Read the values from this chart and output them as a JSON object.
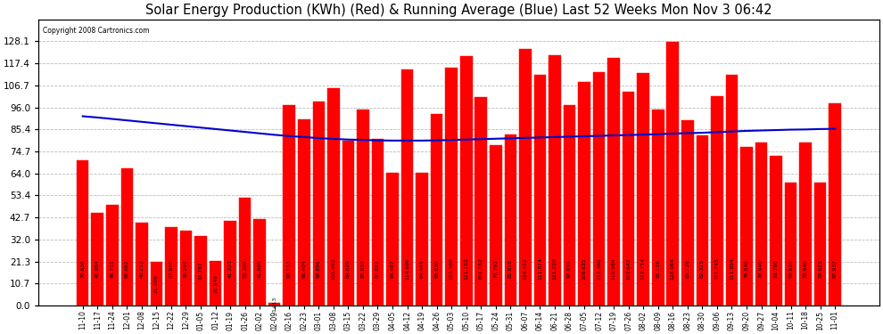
{
  "title": "Solar Energy Production (KWh) (Red) & Running Average (Blue) Last 52 Weeks Mon Nov 3 06:42",
  "copyright": "Copyright 2008 Cartronics.com",
  "bar_color": "#ff0000",
  "line_color": "#0000cc",
  "bg_color": "#ffffff",
  "grid_color": "#bbbbbb",
  "categories": [
    "11-10",
    "11-17",
    "11-24",
    "12-01",
    "12-08",
    "12-15",
    "12-22",
    "12-29",
    "01-05",
    "01-12",
    "01-19",
    "01-26",
    "02-02",
    "02-09",
    "02-16",
    "02-23",
    "03-01",
    "03-08",
    "03-15",
    "03-22",
    "03-29",
    "04-05",
    "04-12",
    "04-19",
    "04-26",
    "05-03",
    "05-10",
    "05-17",
    "05-24",
    "05-31",
    "06-07",
    "06-14",
    "06-21",
    "06-28",
    "07-05",
    "07-12",
    "07-19",
    "07-26",
    "08-02",
    "08-09",
    "08-16",
    "08-23",
    "08-30",
    "09-06",
    "09-13",
    "09-20",
    "09-27",
    "10-04",
    "10-11",
    "10-18",
    "10-25",
    "11-01"
  ],
  "values": [
    70.636,
    45.084,
    48.731,
    66.662,
    40.212,
    21.009,
    37.97,
    36.297,
    33.787,
    21.549,
    41.221,
    52.307,
    41.885,
    1.413,
    97.113,
    90.404,
    98.896,
    105.492,
    80.029,
    95.033,
    80.822,
    64.487,
    114.699,
    64.445,
    93.03,
    115.568,
    121.102,
    101.182,
    77.762,
    82.818,
    124.452,
    111.874,
    121.22,
    97.016,
    108.635,
    113.36,
    119.984,
    103.642,
    112.714,
    95.156,
    128.064,
    89.726,
    82.325,
    101.745,
    111.894,
    76.94,
    78.94,
    72.76,
    59.625,
    78.94,
    59.625,
    97.937
  ],
  "running_avg": [
    91.8,
    91.2,
    90.5,
    89.8,
    89.1,
    88.4,
    87.7,
    87.0,
    86.3,
    85.6,
    84.9,
    84.2,
    83.5,
    82.8,
    82.2,
    81.7,
    81.2,
    80.8,
    80.5,
    80.3,
    80.1,
    80.0,
    80.0,
    80.0,
    80.1,
    80.3,
    80.5,
    80.7,
    80.9,
    81.1,
    81.3,
    81.5,
    81.7,
    81.9,
    82.1,
    82.3,
    82.5,
    82.7,
    82.9,
    83.1,
    83.4,
    83.6,
    83.8,
    84.1,
    84.4,
    84.7,
    84.9,
    85.1,
    85.3,
    85.4,
    85.6,
    85.7
  ],
  "ylim": [
    0.0,
    138.8
  ],
  "yticks": [
    0.0,
    10.7,
    21.3,
    32.0,
    42.7,
    53.4,
    64.0,
    74.7,
    85.4,
    96.0,
    106.7,
    117.4,
    128.1
  ],
  "ytick_labels": [
    "0.0",
    "10.7",
    "21.3",
    "32.0",
    "42.7",
    "53.4",
    "64.0",
    "74.7",
    "85.4",
    "96.0",
    "106.7",
    "117.4",
    "128.1"
  ],
  "title_fontsize": 10.5,
  "label_fontsize": 4.3,
  "tick_fontsize": 7.5,
  "xtick_fontsize": 5.5,
  "bar_width": 0.82
}
